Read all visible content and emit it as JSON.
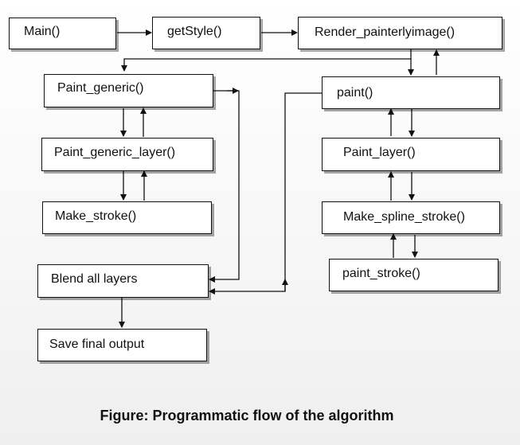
{
  "nodes": {
    "main": "Main()",
    "getstyle": "getStyle()",
    "render": "Render_painterlyimage()",
    "paint_generic": "Paint_generic()",
    "paint_generic_layer": "Paint_generic_layer()",
    "make_stroke": "Make_stroke()",
    "blend": "Blend all layers",
    "save": "Save final output",
    "paint": "paint()",
    "paint_layer": "Paint_layer()",
    "make_spline_stroke": "Make_spline_stroke()",
    "paint_stroke": "paint_stroke()"
  },
  "caption": "Figure: Programmatic flow of the algorithm"
}
